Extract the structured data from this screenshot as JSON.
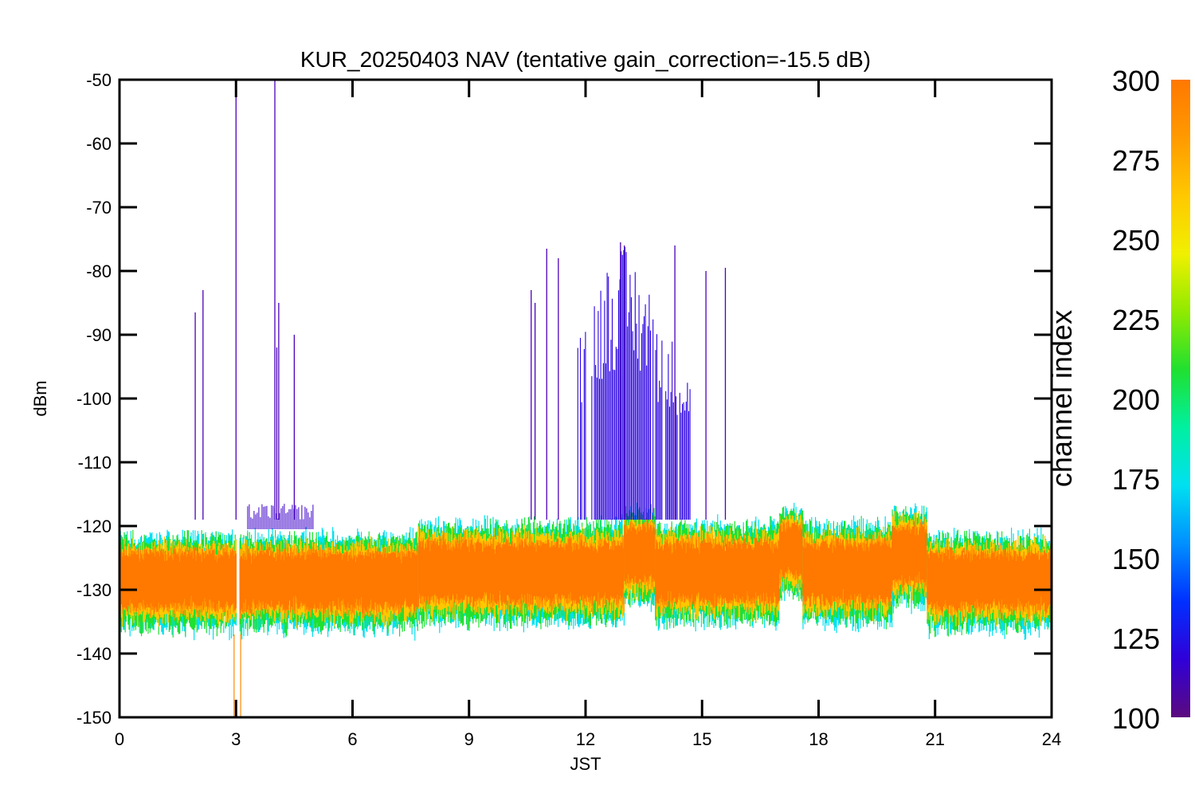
{
  "chart_data": {
    "type": "line",
    "title": "KUR_20250403 NAV (tentative gain_correction=-15.5 dB)",
    "xlabel": "JST",
    "ylabel": "dBm",
    "xlim": [
      0,
      24
    ],
    "ylim": [
      -150,
      -50
    ],
    "x_ticks": [
      "0",
      "3",
      "6",
      "9",
      "12",
      "15",
      "18",
      "21",
      "24"
    ],
    "y_ticks": [
      "-50",
      "-60",
      "-70",
      "-80",
      "-90",
      "-100",
      "-110",
      "-120",
      "-130",
      "-140",
      "-150"
    ],
    "colorbar": {
      "label": "channel index",
      "range": [
        100,
        300
      ],
      "ticks": [
        "300",
        "275",
        "250",
        "225",
        "200",
        "175",
        "150",
        "125",
        "100"
      ],
      "colormap": [
        "#5b0a7e",
        "#3000d8",
        "#0030ff",
        "#0090ff",
        "#00e0f0",
        "#00f0a0",
        "#20e030",
        "#90ea00",
        "#f0f000",
        "#ffc800",
        "#ff9a00",
        "#ff7800"
      ]
    },
    "grid": false,
    "series": [
      {
        "label": "noise floor band",
        "channel_index": [
          150,
          300
        ],
        "segments": [
          {
            "x": [
              0.0,
              7.7
            ],
            "y_median": -128,
            "y_range": [
              -137,
              -121
            ]
          },
          {
            "x": [
              7.7,
              13.0
            ],
            "y_median": -127,
            "y_range": [
              -136,
              -119
            ]
          },
          {
            "x": [
              13.0,
              13.8
            ],
            "y_median": -124,
            "y_range": [
              -133,
              -117
            ]
          },
          {
            "x": [
              13.8,
              17.0
            ],
            "y_median": -127,
            "y_range": [
              -136,
              -119
            ]
          },
          {
            "x": [
              17.0,
              17.6
            ],
            "y_median": -123,
            "y_range": [
              -132,
              -117
            ]
          },
          {
            "x": [
              17.6,
              19.9
            ],
            "y_median": -127,
            "y_range": [
              -136,
              -119
            ]
          },
          {
            "x": [
              19.9,
              20.8
            ],
            "y_median": -124,
            "y_range": [
              -133,
              -117
            ]
          },
          {
            "x": [
              20.8,
              24.0
            ],
            "y_median": -128,
            "y_range": [
              -137,
              -121
            ]
          }
        ],
        "gap_x": 3.05
      },
      {
        "label": "spikes",
        "channel_index": 120,
        "points": [
          {
            "x": 1.95,
            "y": -86.5
          },
          {
            "x": 2.15,
            "y": -83
          },
          {
            "x": 3.0,
            "y": -50
          },
          {
            "x": 4.0,
            "y": -50
          },
          {
            "x": 4.05,
            "y": -92
          },
          {
            "x": 4.1,
            "y": -85
          },
          {
            "x": 4.5,
            "y": -90
          },
          {
            "x": 10.6,
            "y": -83
          },
          {
            "x": 10.7,
            "y": -85
          },
          {
            "x": 11.0,
            "y": -76.5
          },
          {
            "x": 11.3,
            "y": -78
          },
          {
            "x": 12.9,
            "y": -75.5
          },
          {
            "x": 13.0,
            "y": -76
          },
          {
            "x": 14.3,
            "y": -76
          },
          {
            "x": 15.1,
            "y": -80
          },
          {
            "x": 15.6,
            "y": -79.5
          }
        ],
        "burst_x": [
          11.8,
          14.7
        ],
        "burst_y_range": [
          -119,
          -76
        ]
      }
    ]
  }
}
